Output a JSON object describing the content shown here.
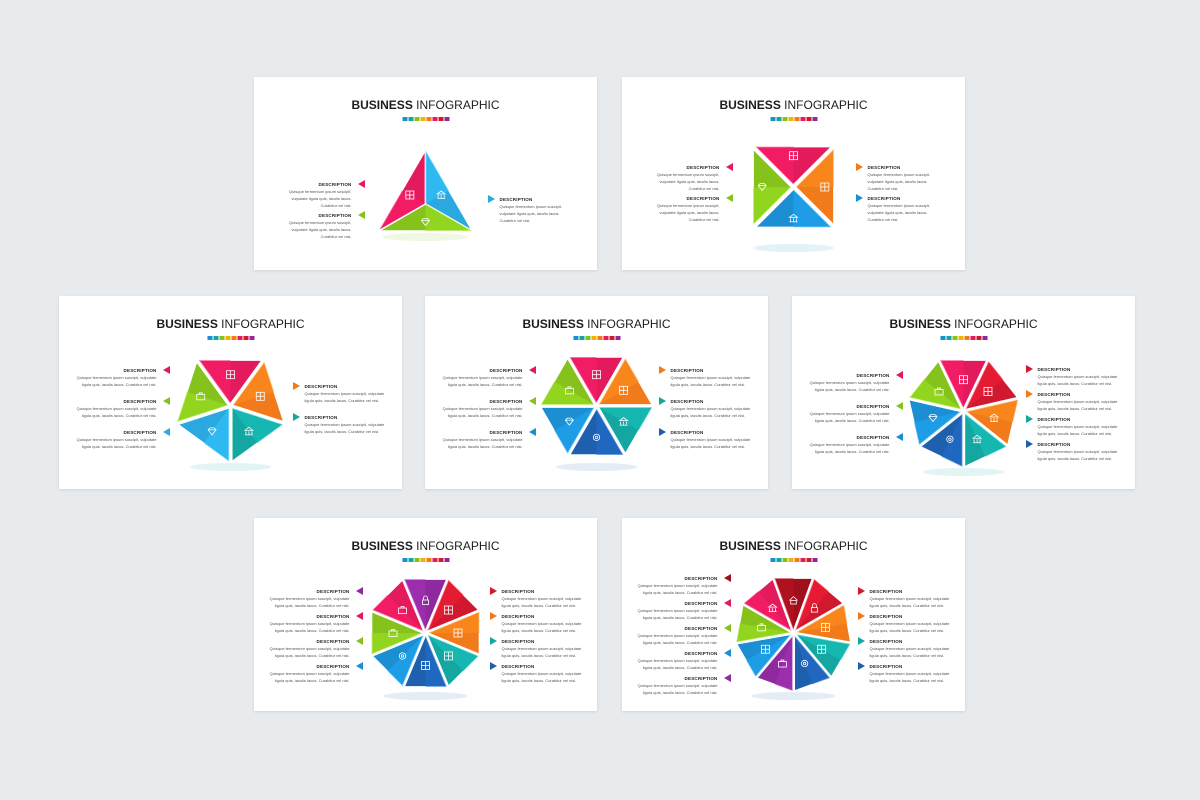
{
  "slides": [
    {
      "title_bold": "BUSINESS",
      "title_rest": "INFOGRAPHIC",
      "segments": 3,
      "layout": "triangle",
      "colors": [
        "#e31a5c",
        "#2aa8df",
        "#85c21c"
      ],
      "icons": [
        "film-icon",
        "bank-icon",
        "diamond-icon"
      ],
      "left": [
        {
          "title": "DESCRIPTION",
          "lines": [
            "Quisque fermentum ipsum suscipit,",
            "vulputate ligula quis, iaculis lacus.",
            "Curabitur vel nisi."
          ],
          "color": "#e31a5c"
        },
        {
          "title": "DESCRIPTION",
          "lines": [
            "Quisque fermentum ipsum suscipit,",
            "vulputate ligula quis, iaculis lacus.",
            "Curabitur vel nisi."
          ],
          "color": "#85c21c"
        }
      ],
      "right": [
        {
          "title": "DESCRIPTION",
          "lines": [
            "Quisque fermentum ipsum suscipit,",
            "vulputate ligula quis, iaculis lacus.",
            "Curabitur vel nisi."
          ],
          "color": "#2aa8df"
        }
      ]
    },
    {
      "title_bold": "BUSINESS",
      "title_rest": "INFOGRAPHIC",
      "segments": 4,
      "layout": "square",
      "colors": [
        "#e31a5c",
        "#f17a1a",
        "#1b8fd1",
        "#85c21c"
      ],
      "icons": [
        "film-icon",
        "chart-icon",
        "bank-icon",
        "diamond-icon"
      ],
      "left": [
        {
          "title": "DESCRIPTION",
          "lines": [
            "Quisque fermentum ipsum suscipit,",
            "vulputate ligula quis, iaculis lacus.",
            "Curabitur vel nisi."
          ],
          "color": "#e31a5c"
        },
        {
          "title": "DESCRIPTION",
          "lines": [
            "Quisque fermentum ipsum suscipit,",
            "vulputate ligula quis, iaculis lacus.",
            "Curabitur vel nisi."
          ],
          "color": "#85c21c"
        }
      ],
      "right": [
        {
          "title": "DESCRIPTION",
          "lines": [
            "Quisque fermentum ipsum suscipit,",
            "vulputate ligula quis, iaculis lacus.",
            "Curabitur vel nisi."
          ],
          "color": "#f17a1a"
        },
        {
          "title": "DESCRIPTION",
          "lines": [
            "Quisque fermentum ipsum suscipit,",
            "vulputate ligula quis, iaculis lacus.",
            "Curabitur vel nisi."
          ],
          "color": "#1b8fd1"
        }
      ]
    },
    {
      "title_bold": "BUSINESS",
      "title_rest": "INFOGRAPHIC",
      "segments": 5,
      "layout": "polygon",
      "colors": [
        "#e31a5c",
        "#f17a1a",
        "#14a6a0",
        "#2aa8df",
        "#85c21c"
      ],
      "icons": [
        "film-icon",
        "chart-icon",
        "bank-icon",
        "diamond-icon",
        "briefcase-icon"
      ],
      "left": [
        {
          "title": "DESCRIPTION",
          "lines": [
            "Quisque fermentum ipsum suscipit, vulputate",
            "ligula quis, iaculis lacus. Curabitur vel nisi."
          ],
          "color": "#e31a5c"
        },
        {
          "title": "DESCRIPTION",
          "lines": [
            "Quisque fermentum ipsum suscipit, vulputate",
            "ligula quis, iaculis lacus. Curabitur vel nisi."
          ],
          "color": "#85c21c"
        },
        {
          "title": "DESCRIPTION",
          "lines": [
            "Quisque fermentum ipsum suscipit, vulputate",
            "ligula quis, iaculis lacus. Curabitur vel nisi."
          ],
          "color": "#2aa8df"
        }
      ],
      "right": [
        {
          "title": "DESCRIPTION",
          "lines": [
            "Quisque fermentum ipsum suscipit, vulputate",
            "ligula quis, iaculis lacus. Curabitur vel nisi."
          ],
          "color": "#f17a1a"
        },
        {
          "title": "DESCRIPTION",
          "lines": [
            "Quisque fermentum ipsum suscipit, vulputate",
            "ligula quis, iaculis lacus. Curabitur vel nisi."
          ],
          "color": "#14a6a0"
        }
      ]
    },
    {
      "title_bold": "BUSINESS",
      "title_rest": "INFOGRAPHIC",
      "segments": 6,
      "layout": "polygon",
      "colors": [
        "#e31a5c",
        "#f17a1a",
        "#14a6a0",
        "#1e5fae",
        "#1b8fd1",
        "#85c21c"
      ],
      "icons": [
        "film-icon",
        "chart-icon",
        "bank-icon",
        "gear-icon",
        "diamond-icon",
        "briefcase-icon"
      ],
      "left": [
        {
          "title": "DESCRIPTION",
          "lines": [
            "Quisque fermentum ipsum suscipit, vulputate",
            "ligula quis, iaculis lacus. Curabitur vel nisi."
          ],
          "color": "#e31a5c"
        },
        {
          "title": "DESCRIPTION",
          "lines": [
            "Quisque fermentum ipsum suscipit, vulputate",
            "ligula quis, iaculis lacus. Curabitur vel nisi."
          ],
          "color": "#85c21c"
        },
        {
          "title": "DESCRIPTION",
          "lines": [
            "Quisque fermentum ipsum suscipit, vulputate",
            "ligula quis, iaculis lacus. Curabitur vel nisi."
          ],
          "color": "#1b8fd1"
        }
      ],
      "right": [
        {
          "title": "DESCRIPTION",
          "lines": [
            "Quisque fermentum ipsum suscipit, vulputate",
            "ligula quis, iaculis lacus. Curabitur vel nisi."
          ],
          "color": "#f17a1a"
        },
        {
          "title": "DESCRIPTION",
          "lines": [
            "Quisque fermentum ipsum suscipit, vulputate",
            "ligula quis, iaculis lacus. Curabitur vel nisi."
          ],
          "color": "#14a6a0"
        },
        {
          "title": "DESCRIPTION",
          "lines": [
            "Quisque fermentum ipsum suscipit, vulputate",
            "ligula quis, iaculis lacus. Curabitur vel nisi."
          ],
          "color": "#1e5fae"
        }
      ]
    },
    {
      "title_bold": "BUSINESS",
      "title_rest": "INFOGRAPHIC",
      "segments": 7,
      "layout": "polygon",
      "colors": [
        "#e31a5c",
        "#d0192f",
        "#f17a1a",
        "#14a6a0",
        "#1e5fae",
        "#1b8fd1",
        "#85c21c"
      ],
      "icons": [
        "film-icon",
        "chart-icon",
        "bank-icon",
        "bank-icon",
        "gear-icon",
        "diamond-icon",
        "briefcase-icon"
      ],
      "left": [
        {
          "title": "DESCRIPTION",
          "lines": [
            "Quisque fermentum ipsum suscipit, vulputate",
            "ligula quis, iaculis lacus. Curabitur vel nisi."
          ],
          "color": "#e31a5c"
        },
        {
          "title": "DESCRIPTION",
          "lines": [
            "Quisque fermentum ipsum suscipit, vulputate",
            "ligula quis, iaculis lacus. Curabitur vel nisi."
          ],
          "color": "#85c21c"
        },
        {
          "title": "DESCRIPTION",
          "lines": [
            "Quisque fermentum ipsum suscipit, vulputate",
            "ligula quis, iaculis lacus. Curabitur vel nisi."
          ],
          "color": "#1b8fd1"
        }
      ],
      "right": [
        {
          "title": "DESCRIPTION",
          "lines": [
            "Quisque fermentum ipsum suscipit, vulputate",
            "ligula quis, iaculis lacus. Curabitur vel nisi."
          ],
          "color": "#d0192f"
        },
        {
          "title": "DESCRIPTION",
          "lines": [
            "Quisque fermentum ipsum suscipit, vulputate",
            "ligula quis, iaculis lacus. Curabitur vel nisi."
          ],
          "color": "#f17a1a"
        },
        {
          "title": "DESCRIPTION",
          "lines": [
            "Quisque fermentum ipsum suscipit, vulputate",
            "ligula quis, iaculis lacus. Curabitur vel nisi."
          ],
          "color": "#14a6a0"
        },
        {
          "title": "DESCRIPTION",
          "lines": [
            "Quisque fermentum ipsum suscipit, vulputate",
            "ligula quis, iaculis lacus. Curabitur vel nisi."
          ],
          "color": "#1e5fae"
        }
      ]
    },
    {
      "title_bold": "BUSINESS",
      "title_rest": "INFOGRAPHIC",
      "segments": 8,
      "layout": "polygon",
      "colors": [
        "#8e2a9e",
        "#d0192f",
        "#f17a1a",
        "#14a6a0",
        "#1e5fae",
        "#1b8fd1",
        "#85c21c",
        "#e31a5c"
      ],
      "icons": [
        "lock-icon",
        "film-icon",
        "chart-icon",
        "chart-icon",
        "chart-icon",
        "gear-icon",
        "briefcase-icon",
        "briefcase-icon"
      ],
      "left": [
        {
          "title": "DESCRIPTION",
          "lines": [
            "Quisque fermentum ipsum suscipit, vulputate",
            "ligula quis, iaculis lacus. Curabitur vel nisi."
          ],
          "color": "#8e2a9e"
        },
        {
          "title": "DESCRIPTION",
          "lines": [
            "Quisque fermentum ipsum suscipit, vulputate",
            "ligula quis, iaculis lacus. Curabitur vel nisi."
          ],
          "color": "#e31a5c"
        },
        {
          "title": "DESCRIPTION",
          "lines": [
            "Quisque fermentum ipsum suscipit, vulputate",
            "ligula quis, iaculis lacus. Curabitur vel nisi."
          ],
          "color": "#85c21c"
        },
        {
          "title": "DESCRIPTION",
          "lines": [
            "Quisque fermentum ipsum suscipit, vulputate",
            "ligula quis, iaculis lacus. Curabitur vel nisi."
          ],
          "color": "#1b8fd1"
        }
      ],
      "right": [
        {
          "title": "DESCRIPTION",
          "lines": [
            "Quisque fermentum ipsum suscipit, vulputate",
            "ligula quis, iaculis lacus. Curabitur vel nisi."
          ],
          "color": "#d0192f"
        },
        {
          "title": "DESCRIPTION",
          "lines": [
            "Quisque fermentum ipsum suscipit, vulputate",
            "ligula quis, iaculis lacus. Curabitur vel nisi."
          ],
          "color": "#f17a1a"
        },
        {
          "title": "DESCRIPTION",
          "lines": [
            "Quisque fermentum ipsum suscipit, vulputate",
            "ligula quis, iaculis lacus. Curabitur vel nisi."
          ],
          "color": "#14a6a0"
        },
        {
          "title": "DESCRIPTION",
          "lines": [
            "Quisque fermentum ipsum suscipit, vulputate",
            "ligula quis, iaculis lacus. Curabitur vel nisi."
          ],
          "color": "#1e5fae"
        }
      ]
    },
    {
      "title_bold": "BUSINESS",
      "title_rest": "INFOGRAPHIC",
      "segments": 9,
      "layout": "polygon",
      "colors": [
        "#a0101c",
        "#d0192f",
        "#f17a1a",
        "#14a6a0",
        "#1e5fae",
        "#8e2a9e",
        "#1b8fd1",
        "#85c21c",
        "#e31a5c"
      ],
      "icons": [
        "house-icon",
        "lock-icon",
        "chart-icon",
        "chart-icon",
        "gear-icon",
        "briefcase-icon",
        "film-icon",
        "briefcase-icon",
        "bank-icon"
      ],
      "left": [
        {
          "title": "DESCRIPTION",
          "lines": [
            "Quisque fermentum ipsum suscipit, vulputate",
            "ligula quis, iaculis lacus. Curabitur vel nisi."
          ],
          "color": "#a0101c"
        },
        {
          "title": "DESCRIPTION",
          "lines": [
            "Quisque fermentum ipsum suscipit, vulputate",
            "ligula quis, iaculis lacus. Curabitur vel nisi."
          ],
          "color": "#e31a5c"
        },
        {
          "title": "DESCRIPTION",
          "lines": [
            "Quisque fermentum ipsum suscipit, vulputate",
            "ligula quis, iaculis lacus. Curabitur vel nisi."
          ],
          "color": "#85c21c"
        },
        {
          "title": "DESCRIPTION",
          "lines": [
            "Quisque fermentum ipsum suscipit, vulputate",
            "ligula quis, iaculis lacus. Curabitur vel nisi."
          ],
          "color": "#1b8fd1"
        },
        {
          "title": "DESCRIPTION",
          "lines": [
            "Quisque fermentum ipsum suscipit, vulputate",
            "ligula quis, iaculis lacus. Curabitur vel nisi."
          ],
          "color": "#8e2a9e"
        }
      ],
      "right": [
        {
          "title": "DESCRIPTION",
          "lines": [
            "Quisque fermentum ipsum suscipit, vulputate",
            "ligula quis, iaculis lacus. Curabitur vel nisi."
          ],
          "color": "#d0192f"
        },
        {
          "title": "DESCRIPTION",
          "lines": [
            "Quisque fermentum ipsum suscipit, vulputate",
            "ligula quis, iaculis lacus. Curabitur vel nisi."
          ],
          "color": "#f17a1a"
        },
        {
          "title": "DESCRIPTION",
          "lines": [
            "Quisque fermentum ipsum suscipit, vulputate",
            "ligula quis, iaculis lacus. Curabitur vel nisi."
          ],
          "color": "#14a6a0"
        },
        {
          "title": "DESCRIPTION",
          "lines": [
            "Quisque fermentum ipsum suscipit, vulputate",
            "ligula quis, iaculis lacus. Curabitur vel nisi."
          ],
          "color": "#1e5fae"
        }
      ]
    }
  ],
  "swatch_colors": [
    "#1b8fd1",
    "#14a6a0",
    "#85c21c",
    "#f0b400",
    "#f17a1a",
    "#e31a5c",
    "#d0192f",
    "#8e2a9e"
  ]
}
